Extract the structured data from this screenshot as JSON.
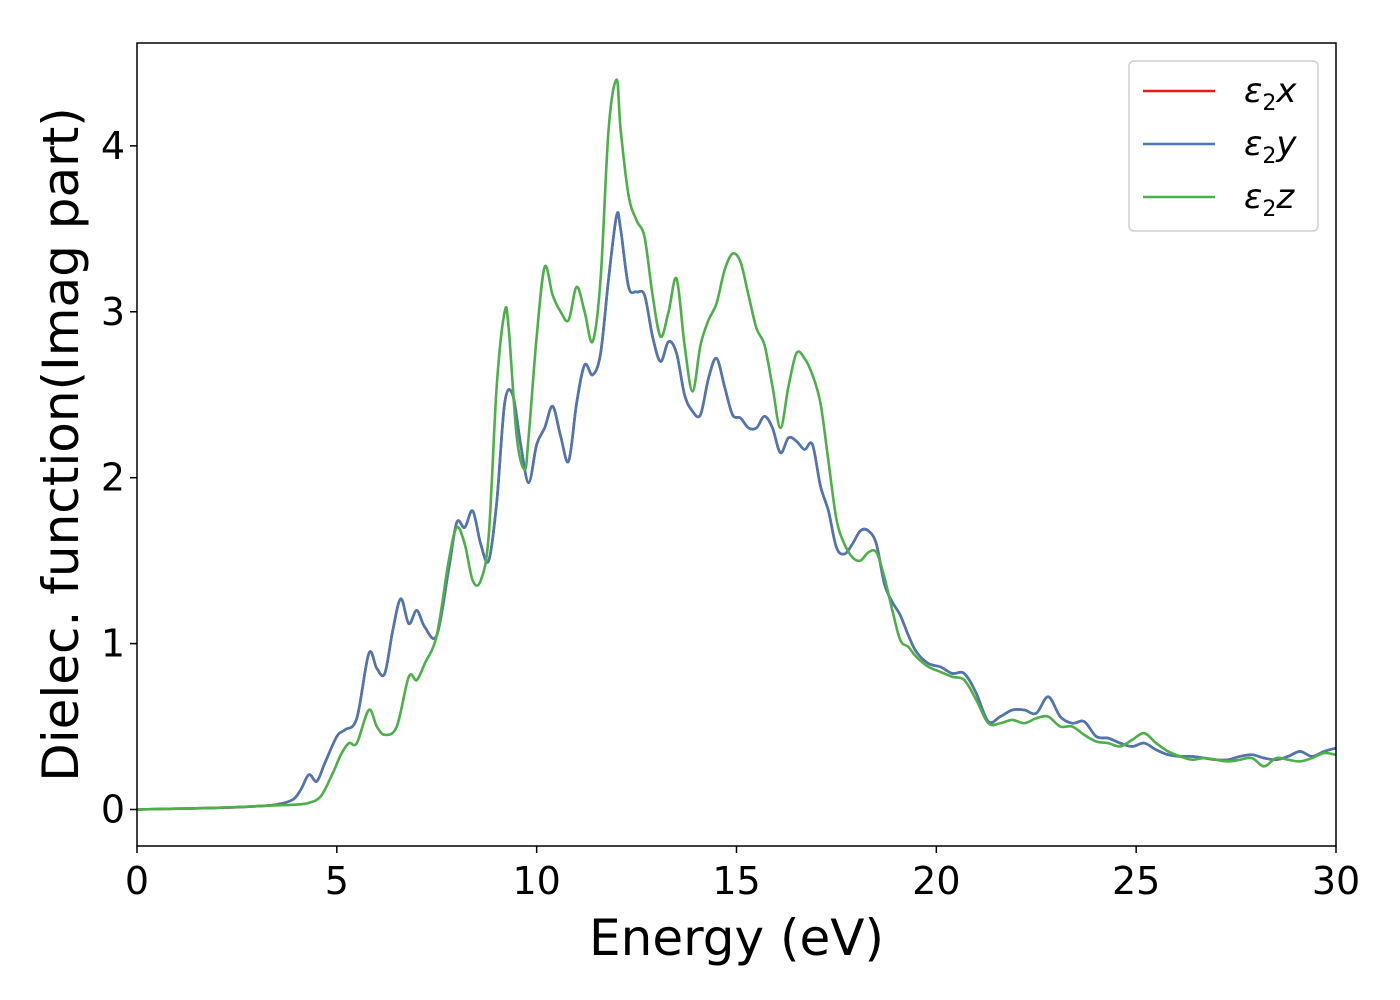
{
  "chart_data": {
    "type": "line",
    "xlabel": "Energy (eV)",
    "ylabel": "Dielec. function(Imag part)",
    "xlim": [
      0,
      30
    ],
    "ylim": [
      -0.22,
      4.62
    ],
    "xticks": [
      "0",
      "5",
      "10",
      "15",
      "20",
      "25",
      "30"
    ],
    "yticks": [
      "0",
      "1",
      "2",
      "3",
      "4"
    ],
    "grid": false,
    "legend_position": "top-right",
    "series": [
      {
        "name": "ε2x",
        "legend_base": "ε",
        "legend_sub": "2",
        "legend_tail": "x",
        "color": "#e41a1c",
        "x": [
          0,
          1,
          2,
          3,
          3.5,
          3.9,
          4.1,
          4.3,
          4.5,
          4.7,
          5.0,
          5.2,
          5.5,
          5.8,
          6.0,
          6.2,
          6.4,
          6.6,
          6.8,
          7.0,
          7.2,
          7.5,
          7.8,
          8.0,
          8.2,
          8.4,
          8.6,
          8.8,
          9.0,
          9.2,
          9.4,
          9.6,
          9.8,
          10.0,
          10.2,
          10.4,
          10.6,
          10.8,
          11.0,
          11.2,
          11.4,
          11.6,
          11.8,
          12.0,
          12.1,
          12.3,
          12.5,
          12.7,
          12.9,
          13.1,
          13.3,
          13.5,
          13.7,
          13.9,
          14.1,
          14.3,
          14.5,
          14.7,
          14.9,
          15.1,
          15.3,
          15.5,
          15.7,
          15.9,
          16.1,
          16.3,
          16.5,
          16.7,
          16.9,
          17.1,
          17.3,
          17.5,
          17.7,
          17.9,
          18.1,
          18.3,
          18.5,
          18.7,
          18.9,
          19.1,
          19.3,
          19.5,
          19.8,
          20.1,
          20.4,
          20.7,
          21.0,
          21.3,
          21.6,
          21.9,
          22.2,
          22.5,
          22.8,
          23.1,
          23.4,
          23.7,
          24.0,
          24.3,
          24.6,
          24.9,
          25.2,
          25.5,
          25.8,
          26.1,
          26.4,
          26.7,
          27.0,
          27.3,
          27.6,
          27.9,
          28.2,
          28.5,
          28.8,
          29.1,
          29.4,
          29.7,
          30.0
        ],
        "values": [
          0.0,
          0.005,
          0.01,
          0.02,
          0.03,
          0.06,
          0.12,
          0.21,
          0.17,
          0.28,
          0.44,
          0.48,
          0.55,
          0.94,
          0.85,
          0.82,
          1.08,
          1.27,
          1.12,
          1.2,
          1.1,
          1.05,
          1.45,
          1.73,
          1.7,
          1.8,
          1.6,
          1.5,
          1.85,
          2.45,
          2.5,
          2.2,
          1.97,
          2.2,
          2.3,
          2.43,
          2.25,
          2.1,
          2.45,
          2.68,
          2.62,
          2.75,
          3.2,
          3.58,
          3.5,
          3.15,
          3.12,
          3.1,
          2.85,
          2.7,
          2.82,
          2.75,
          2.5,
          2.4,
          2.38,
          2.6,
          2.72,
          2.55,
          2.38,
          2.36,
          2.3,
          2.3,
          2.37,
          2.3,
          2.15,
          2.24,
          2.22,
          2.17,
          2.2,
          1.95,
          1.8,
          1.58,
          1.54,
          1.6,
          1.68,
          1.68,
          1.6,
          1.36,
          1.25,
          1.17,
          1.05,
          0.95,
          0.88,
          0.86,
          0.82,
          0.82,
          0.7,
          0.53,
          0.56,
          0.6,
          0.6,
          0.58,
          0.68,
          0.56,
          0.52,
          0.53,
          0.44,
          0.43,
          0.4,
          0.38,
          0.4,
          0.36,
          0.33,
          0.32,
          0.32,
          0.31,
          0.3,
          0.3,
          0.32,
          0.33,
          0.31,
          0.3,
          0.32,
          0.35,
          0.32,
          0.35,
          0.37
        ]
      },
      {
        "name": "ε2y",
        "legend_base": "ε",
        "legend_sub": "2",
        "legend_tail": "y",
        "color": "#4a78b2",
        "x": [
          0,
          1,
          2,
          3,
          3.5,
          3.9,
          4.1,
          4.3,
          4.5,
          4.7,
          5.0,
          5.2,
          5.5,
          5.8,
          6.0,
          6.2,
          6.4,
          6.6,
          6.8,
          7.0,
          7.2,
          7.5,
          7.8,
          8.0,
          8.2,
          8.4,
          8.6,
          8.8,
          9.0,
          9.2,
          9.4,
          9.6,
          9.8,
          10.0,
          10.2,
          10.4,
          10.6,
          10.8,
          11.0,
          11.2,
          11.4,
          11.6,
          11.8,
          12.0,
          12.1,
          12.3,
          12.5,
          12.7,
          12.9,
          13.1,
          13.3,
          13.5,
          13.7,
          13.9,
          14.1,
          14.3,
          14.5,
          14.7,
          14.9,
          15.1,
          15.3,
          15.5,
          15.7,
          15.9,
          16.1,
          16.3,
          16.5,
          16.7,
          16.9,
          17.1,
          17.3,
          17.5,
          17.7,
          17.9,
          18.1,
          18.3,
          18.5,
          18.7,
          18.9,
          19.1,
          19.3,
          19.5,
          19.8,
          20.1,
          20.4,
          20.7,
          21.0,
          21.3,
          21.6,
          21.9,
          22.2,
          22.5,
          22.8,
          23.1,
          23.4,
          23.7,
          24.0,
          24.3,
          24.6,
          24.9,
          25.2,
          25.5,
          25.8,
          26.1,
          26.4,
          26.7,
          27.0,
          27.3,
          27.6,
          27.9,
          28.2,
          28.5,
          28.8,
          29.1,
          29.4,
          29.7,
          30.0
        ],
        "values": [
          0.0,
          0.005,
          0.01,
          0.02,
          0.03,
          0.06,
          0.12,
          0.21,
          0.17,
          0.28,
          0.44,
          0.48,
          0.55,
          0.94,
          0.85,
          0.82,
          1.08,
          1.27,
          1.12,
          1.2,
          1.1,
          1.05,
          1.45,
          1.73,
          1.7,
          1.8,
          1.6,
          1.5,
          1.85,
          2.45,
          2.5,
          2.2,
          1.97,
          2.2,
          2.3,
          2.43,
          2.25,
          2.1,
          2.45,
          2.68,
          2.62,
          2.75,
          3.2,
          3.58,
          3.5,
          3.15,
          3.12,
          3.1,
          2.85,
          2.7,
          2.82,
          2.75,
          2.5,
          2.4,
          2.38,
          2.6,
          2.72,
          2.55,
          2.38,
          2.36,
          2.3,
          2.3,
          2.37,
          2.3,
          2.15,
          2.24,
          2.22,
          2.17,
          2.2,
          1.95,
          1.8,
          1.58,
          1.54,
          1.6,
          1.68,
          1.68,
          1.6,
          1.36,
          1.25,
          1.17,
          1.05,
          0.95,
          0.88,
          0.86,
          0.82,
          0.82,
          0.7,
          0.53,
          0.56,
          0.6,
          0.6,
          0.58,
          0.68,
          0.56,
          0.52,
          0.53,
          0.44,
          0.43,
          0.4,
          0.38,
          0.4,
          0.36,
          0.33,
          0.32,
          0.32,
          0.31,
          0.3,
          0.3,
          0.32,
          0.33,
          0.31,
          0.3,
          0.32,
          0.35,
          0.32,
          0.35,
          0.37
        ]
      },
      {
        "name": "ε2z",
        "legend_base": "ε",
        "legend_sub": "2",
        "legend_tail": "z",
        "color": "#4daf4a",
        "x": [
          0,
          1,
          2,
          3,
          3.5,
          4.0,
          4.3,
          4.6,
          4.9,
          5.1,
          5.3,
          5.5,
          5.8,
          6.0,
          6.2,
          6.5,
          6.8,
          7.0,
          7.2,
          7.5,
          7.8,
          8.0,
          8.2,
          8.4,
          8.6,
          8.8,
          9.0,
          9.2,
          9.3,
          9.5,
          9.7,
          9.8,
          10.0,
          10.2,
          10.4,
          10.6,
          10.8,
          11.0,
          11.2,
          11.4,
          11.6,
          11.8,
          12.0,
          12.1,
          12.3,
          12.5,
          12.7,
          12.9,
          13.1,
          13.3,
          13.5,
          13.7,
          13.9,
          14.1,
          14.3,
          14.5,
          14.7,
          14.9,
          15.1,
          15.3,
          15.5,
          15.7,
          15.9,
          16.1,
          16.3,
          16.5,
          16.7,
          16.9,
          17.1,
          17.3,
          17.5,
          17.7,
          17.9,
          18.1,
          18.3,
          18.5,
          18.7,
          18.9,
          19.1,
          19.3,
          19.5,
          19.8,
          20.1,
          20.4,
          20.7,
          21.0,
          21.3,
          21.6,
          21.9,
          22.2,
          22.5,
          22.8,
          23.1,
          23.4,
          23.7,
          24.0,
          24.3,
          24.6,
          24.9,
          25.2,
          25.5,
          25.8,
          26.1,
          26.4,
          26.7,
          27.0,
          27.3,
          27.6,
          27.9,
          28.2,
          28.5,
          28.8,
          29.1,
          29.4,
          29.7,
          30.0
        ],
        "values": [
          0.0,
          0.005,
          0.01,
          0.02,
          0.025,
          0.03,
          0.04,
          0.08,
          0.22,
          0.33,
          0.4,
          0.4,
          0.6,
          0.5,
          0.45,
          0.5,
          0.8,
          0.78,
          0.88,
          1.05,
          1.5,
          1.7,
          1.6,
          1.38,
          1.38,
          1.65,
          2.55,
          3.0,
          2.9,
          2.25,
          2.05,
          2.25,
          2.85,
          3.27,
          3.1,
          3.0,
          2.95,
          3.15,
          3.0,
          2.82,
          3.2,
          4.1,
          4.4,
          4.1,
          3.7,
          3.55,
          3.45,
          3.1,
          2.85,
          3.0,
          3.2,
          2.8,
          2.52,
          2.8,
          2.95,
          3.05,
          3.25,
          3.35,
          3.3,
          3.1,
          2.9,
          2.8,
          2.55,
          2.3,
          2.55,
          2.75,
          2.72,
          2.62,
          2.45,
          2.1,
          1.75,
          1.6,
          1.52,
          1.5,
          1.55,
          1.55,
          1.4,
          1.2,
          1.02,
          0.98,
          0.92,
          0.86,
          0.83,
          0.8,
          0.78,
          0.66,
          0.52,
          0.52,
          0.54,
          0.52,
          0.55,
          0.56,
          0.5,
          0.5,
          0.45,
          0.41,
          0.4,
          0.38,
          0.42,
          0.46,
          0.4,
          0.35,
          0.32,
          0.3,
          0.31,
          0.3,
          0.29,
          0.3,
          0.31,
          0.26,
          0.31,
          0.3,
          0.29,
          0.31,
          0.34,
          0.33
        ]
      }
    ]
  }
}
